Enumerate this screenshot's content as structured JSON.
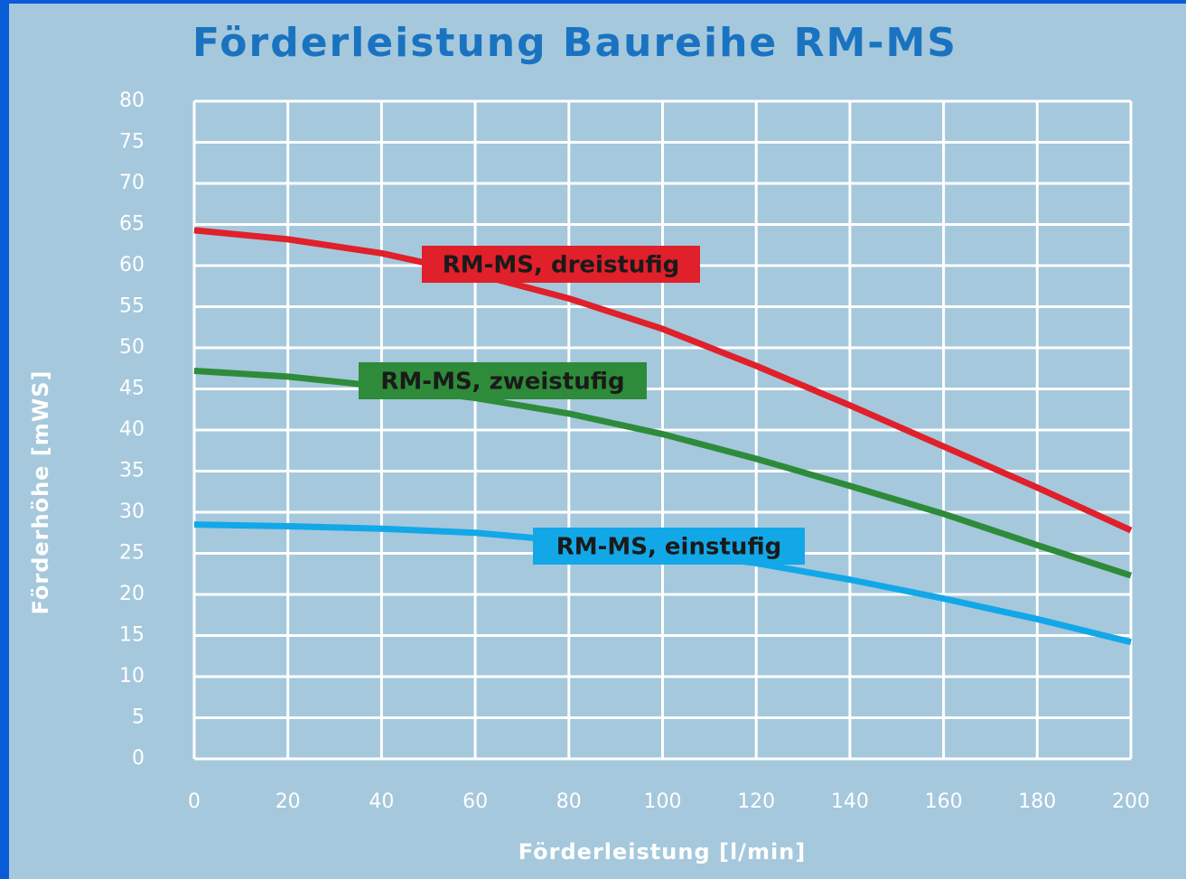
{
  "chart_data": {
    "type": "line",
    "title": "Förderleistung Baureihe RM-MS",
    "x_label": "Förderleistung [l/min]",
    "y_label": "Förderhöhe [mWS]",
    "x": [
      0,
      20,
      40,
      60,
      80,
      100,
      120,
      140,
      160,
      180,
      200
    ],
    "series": [
      {
        "name": "RM-MS, dreistufig",
        "color": "#e0202a",
        "values": [
          64.3,
          63.2,
          61.5,
          59,
          56,
          52.3,
          47.8,
          43,
          38,
          33,
          27.8
        ]
      },
      {
        "name": "RM-MS, zweistufig",
        "color": "#2e8b3a",
        "values": [
          47.2,
          46.5,
          45.3,
          43.9,
          42,
          39.5,
          36.5,
          33.2,
          29.8,
          26,
          22.3
        ]
      },
      {
        "name": "RM-MS, einstufig",
        "color": "#12a8e8",
        "values": [
          28.5,
          28.3,
          28,
          27.5,
          26.5,
          25.3,
          23.8,
          21.8,
          19.5,
          17,
          14.2
        ]
      }
    ],
    "xlim": [
      0,
      200
    ],
    "xticks": [
      0,
      20,
      40,
      60,
      80,
      100,
      120,
      140,
      160,
      180,
      200
    ],
    "ylim": [
      0,
      80
    ],
    "yticks": [
      0,
      5,
      10,
      15,
      20,
      25,
      30,
      35,
      40,
      45,
      50,
      55,
      60,
      65,
      70,
      75,
      80
    ],
    "grid": true
  }
}
